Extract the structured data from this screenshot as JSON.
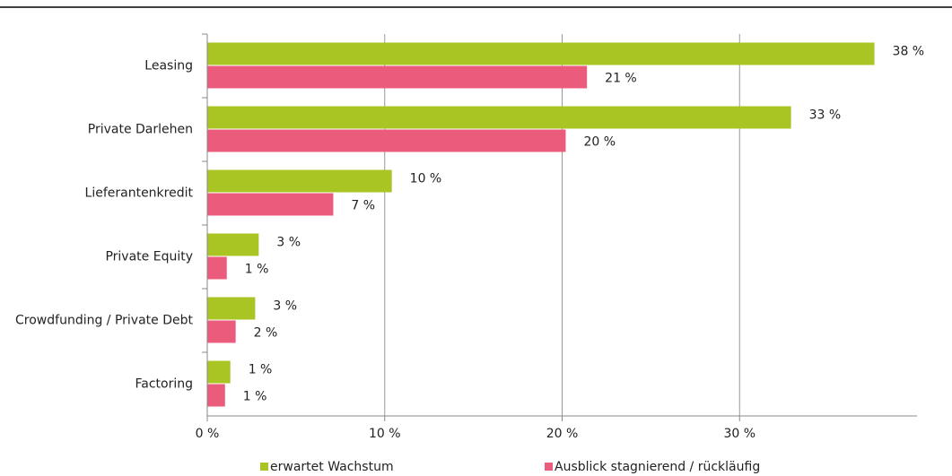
{
  "chart_data": {
    "type": "hbar",
    "categories": [
      "Leasing",
      "Private Darlehen",
      "Lieferantenkredit",
      "Private Equity",
      "Crowdfunding / Private Debt",
      "Factoring"
    ],
    "series": [
      {
        "name": "erwartet Wachstum",
        "color": "#a8c523",
        "values": [
          37.6,
          32.9,
          10.4,
          2.9,
          2.7,
          1.3
        ],
        "value_labels": [
          "38 %",
          "33 %",
          "10 %",
          "3 %",
          "3 %",
          "1 %"
        ]
      },
      {
        "name": "Ausblick stagnierend / rückläufig",
        "color": "#eb5c7c",
        "values": [
          21.4,
          20.2,
          7.1,
          1.1,
          1.6,
          1.0
        ],
        "value_labels": [
          "21 %",
          "20 %",
          "7 %",
          "1 %",
          "2 %",
          "1 %"
        ]
      }
    ],
    "xlim": [
      0,
      40
    ],
    "xticks": [
      {
        "value": 0,
        "label": "0 %"
      },
      {
        "value": 10,
        "label": "10 %"
      },
      {
        "value": 20,
        "label": "20 %"
      },
      {
        "value": 30,
        "label": "30 %"
      }
    ],
    "grid": true,
    "legend": "bottom"
  }
}
